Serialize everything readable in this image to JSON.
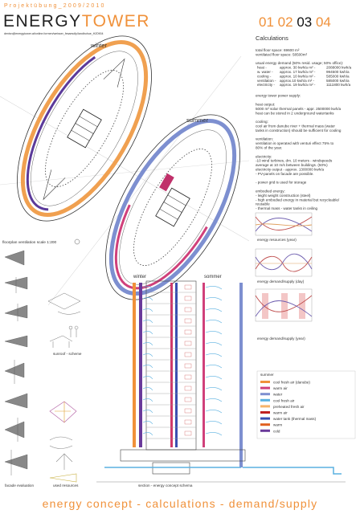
{
  "header": {
    "course": "Projektübung_2009/2010",
    "title_part1": "ENERGY",
    "title_part2": "TOWER",
    "pages": [
      "01",
      "02",
      "03",
      "04"
    ],
    "subtitle": "denisn@energytower.at/online.formen/weisser_fesaesdly/landbuhue_HZ0904"
  },
  "plan": {
    "winter": "winter",
    "summer": "summer",
    "label": "floorplan ventilation",
    "scale": "scale 1:200"
  },
  "calculations": {
    "title": "Calculations",
    "floor": [
      "total floor space: 69600 m²",
      "ventilated floor space: 58500m²"
    ],
    "demand_title": "usual energy demand (50% resid. usage; 50% office):",
    "demand_rows": [
      [
        "heat -",
        "approx. 30 kwh/a m² -",
        "2088000 kwh/a"
      ],
      [
        "w. water -",
        "approx. 17 kwh/a m² -",
        "994500 kwh/a"
      ],
      [
        "cooling -",
        "approx. 10 kwh/a m² -",
        "585000 kwh/a"
      ],
      [
        "ventilation -",
        "approx.10 kwh/a m² -",
        "585000 kwh/a"
      ],
      [
        "electricity -",
        "approx. 19 kwh/a m² -",
        "1111800 kwh/a"
      ]
    ],
    "supply_title": "energy tower power supply:",
    "sections": [
      {
        "heading": "heat output:",
        "lines": [
          "5000 m² solar thermal panels - appr. 2500000 kwh/a",
          "heat can be stored in 2 underground watertanks"
        ]
      },
      {
        "heading": "cooling:",
        "lines": [
          "cool air from danube river + thermal mass (water",
          "tanks in construction) should be sufficient for cooling"
        ]
      },
      {
        "heading": "ventilation:",
        "lines": [
          "ventilation is operated with venturi effect 75% to",
          "80% of the year."
        ]
      },
      {
        "heading": "electricity:",
        "lines": [
          "-10 wind turbines, dm. 10 meters - windspeeds",
          "average at 10 m/s between buildings. (50%)",
          "electricity output - approx. 1300000 kwh/a",
          "- PV-panels on facade are possible."
        ]
      },
      {
        "lines": [
          "- power grid is used for storage"
        ]
      },
      {
        "heading": "embodied energy:",
        "lines": [
          "- leight weight construction (steel)",
          "- high embodied energy in material but recycleable/",
          "reusable",
          "- thermal mass - water tanks in ceiling"
        ]
      }
    ]
  },
  "charts": [
    "energy resources (year)",
    "energy demand/supply (day)",
    "energy demand/supply (year)"
  ],
  "sketches": {
    "sunroof": "sunroof - scheme",
    "resources": "used resources",
    "facade": "facade evaluation"
  },
  "section": {
    "label": "section - energy concept schema",
    "winter": "winter",
    "summer": "sommer",
    "legend_title": "summer",
    "legend": [
      {
        "label": "cool fresh air (danube)",
        "color": "#f0913a"
      },
      {
        "label": "warm air",
        "color": "#d0407a"
      },
      {
        "label": "water",
        "color": "#7d8fd0"
      },
      {
        "label": "cool fresh air",
        "color": "#5ab0e0"
      },
      {
        "label": "preheated fresh air",
        "color": "#f6b36a"
      },
      {
        "label": "warm air",
        "color": "#c02020"
      },
      {
        "label": "water tank (thermal mass)",
        "color": "#3a4fb0"
      },
      {
        "label": "warm",
        "color": "#e06020"
      },
      {
        "label": "cold",
        "color": "#6a3a9a"
      }
    ]
  },
  "footer": "energy concept - calculations - demand/supply"
}
